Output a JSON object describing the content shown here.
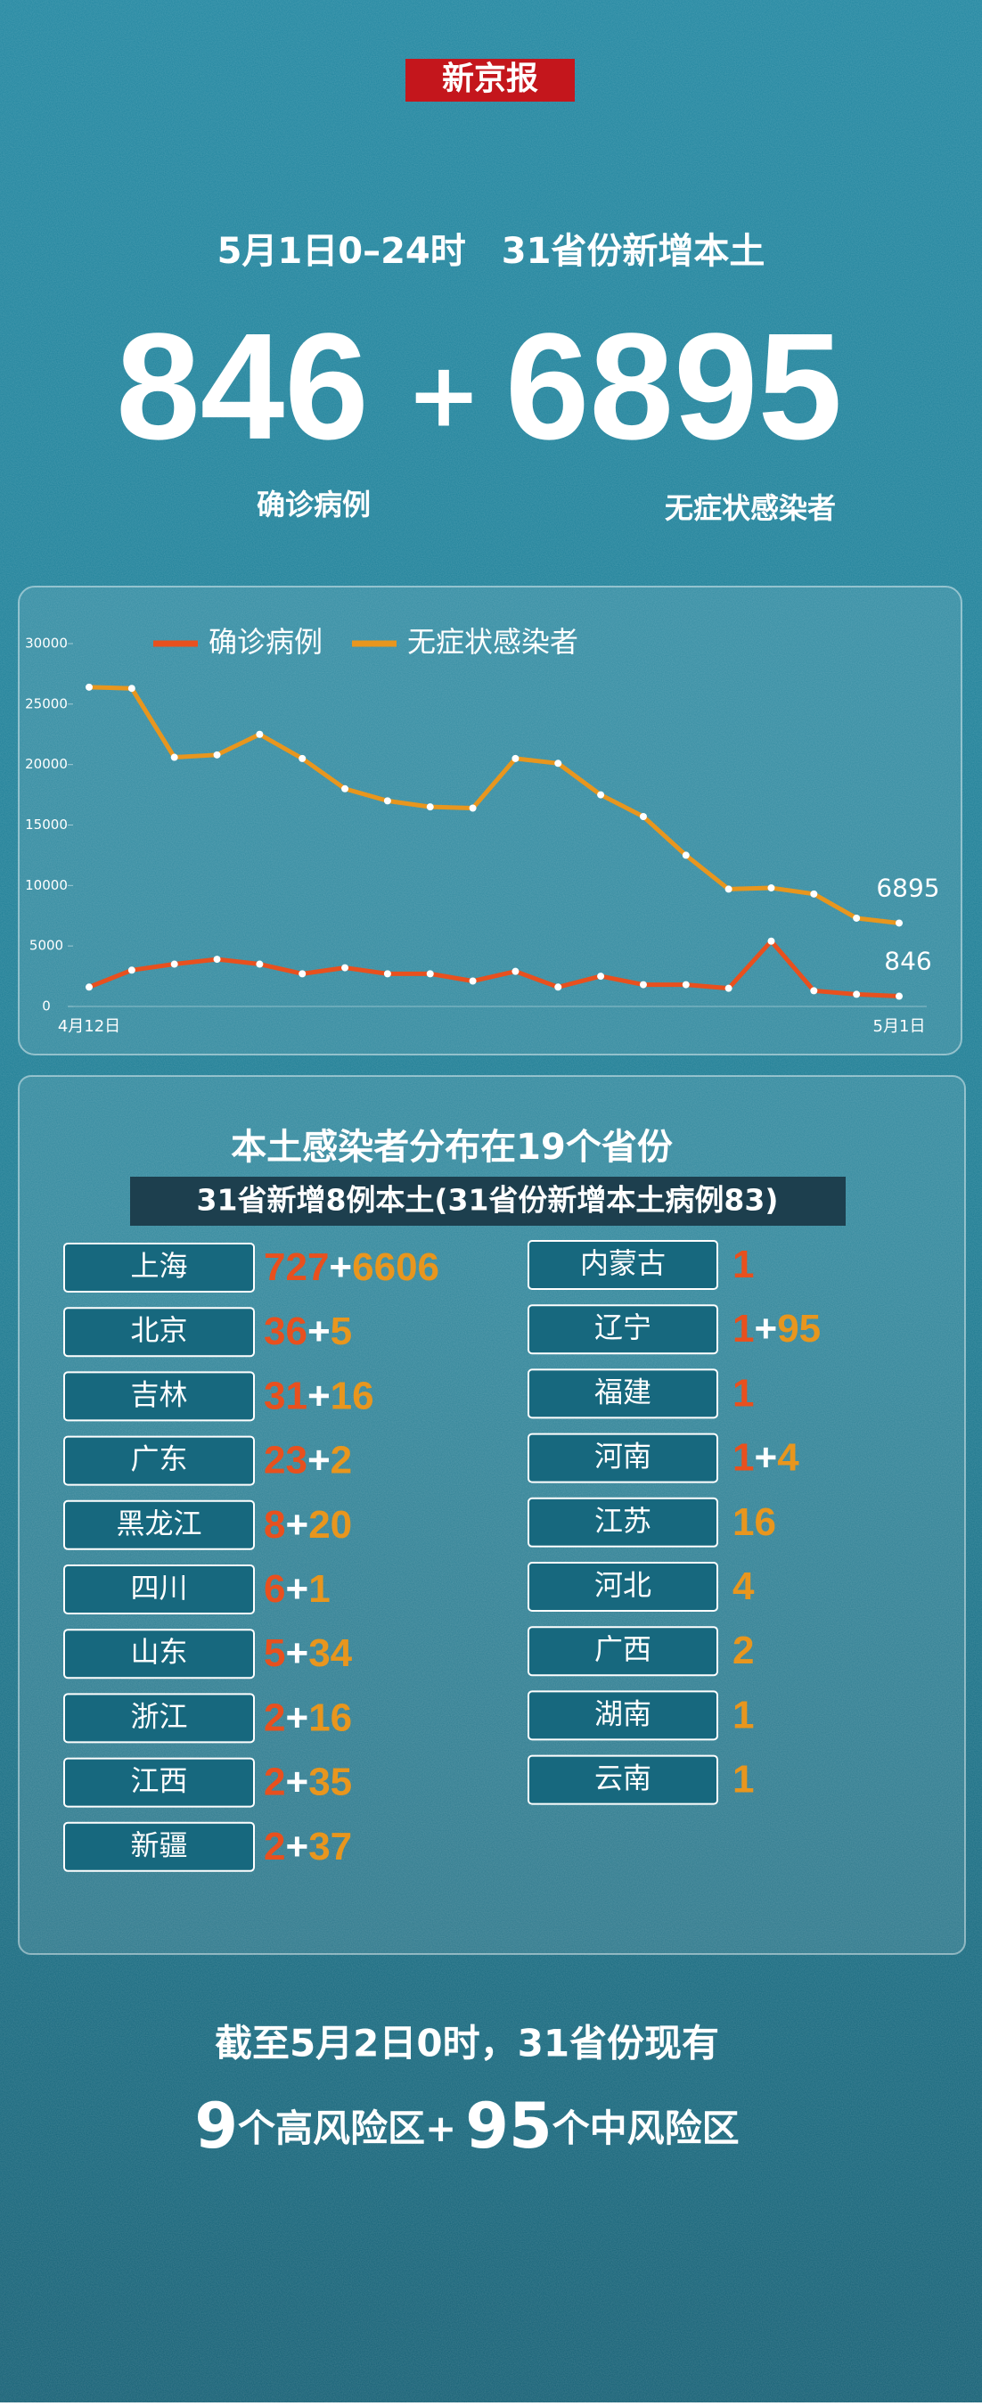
{
  "header": {
    "logo": "新京报",
    "headline": "5月1日0–24时　31省份新增本土",
    "confirmed": 846,
    "plus": "+",
    "asymptomatic": 6895,
    "confirmed_label": "确诊病例",
    "asymptomatic_label": "无症状感染者"
  },
  "chart_data": {
    "type": "line",
    "categories": [
      "4月12日",
      null,
      null,
      null,
      null,
      null,
      null,
      null,
      null,
      null,
      null,
      null,
      null,
      null,
      null,
      null,
      null,
      null,
      null,
      "5月1日"
    ],
    "series": [
      {
        "name": "确诊病例",
        "color": "#e8501e",
        "values": [
          1600,
          3000,
          3500,
          3900,
          3500,
          2700,
          3200,
          2700,
          2700,
          2100,
          2900,
          1600,
          2500,
          1800,
          1800,
          1500,
          5400,
          1300,
          1000,
          846
        ]
      },
      {
        "name": "无症状感染者",
        "color": "#e8961e",
        "values": [
          26400,
          26300,
          20600,
          20800,
          22500,
          20500,
          18000,
          17000,
          16500,
          16400,
          20500,
          20100,
          17500,
          15700,
          12500,
          9700,
          9800,
          9300,
          7300,
          6895
        ]
      }
    ],
    "ylim": [
      0,
      30000
    ],
    "yticks": [
      0,
      5000,
      10000,
      15000,
      20000,
      25000,
      30000
    ],
    "grid": false,
    "legend": "top"
  },
  "distribution": {
    "title": "本土感染者分布在19个省份",
    "subtitle": "31省新增8例本土(31省份新增本土病例83)",
    "plus": "+",
    "left": [
      {
        "name": "上海",
        "confirmed": 727,
        "asymptomatic": 6606
      },
      {
        "name": "北京",
        "confirmed": 36,
        "asymptomatic": 5
      },
      {
        "name": "吉林",
        "confirmed": 31,
        "asymptomatic": 16
      },
      {
        "name": "广东",
        "confirmed": 23,
        "asymptomatic": 2
      },
      {
        "name": "黑龙江",
        "confirmed": 8,
        "asymptomatic": 20
      },
      {
        "name": "四川",
        "confirmed": 6,
        "asymptomatic": 1
      },
      {
        "name": "山东",
        "confirmed": 5,
        "asymptomatic": 34
      },
      {
        "name": "浙江",
        "confirmed": 2,
        "asymptomatic": 16
      },
      {
        "name": "江西",
        "confirmed": 2,
        "asymptomatic": 35
      },
      {
        "name": "新疆",
        "confirmed": 2,
        "asymptomatic": 37
      }
    ],
    "right": [
      {
        "name": "内蒙古",
        "confirmed": 1,
        "asymptomatic": null
      },
      {
        "name": "辽宁",
        "confirmed": 1,
        "asymptomatic": 95
      },
      {
        "name": "福建",
        "confirmed": 1,
        "asymptomatic": null
      },
      {
        "name": "河南",
        "confirmed": 1,
        "asymptomatic": 4
      },
      {
        "name": "江苏",
        "confirmed": null,
        "asymptomatic": 16
      },
      {
        "name": "河北",
        "confirmed": null,
        "asymptomatic": 4
      },
      {
        "name": "广西",
        "confirmed": null,
        "asymptomatic": 2
      },
      {
        "name": "湖南",
        "confirmed": null,
        "asymptomatic": 1
      },
      {
        "name": "云南",
        "confirmed": null,
        "asymptomatic": 1
      }
    ]
  },
  "footer": {
    "line1": "截至5月2日0时，31省份现有",
    "high": 9,
    "high_text": "个高风险区+",
    "medium": 95,
    "medium_text": "个中风险区"
  }
}
